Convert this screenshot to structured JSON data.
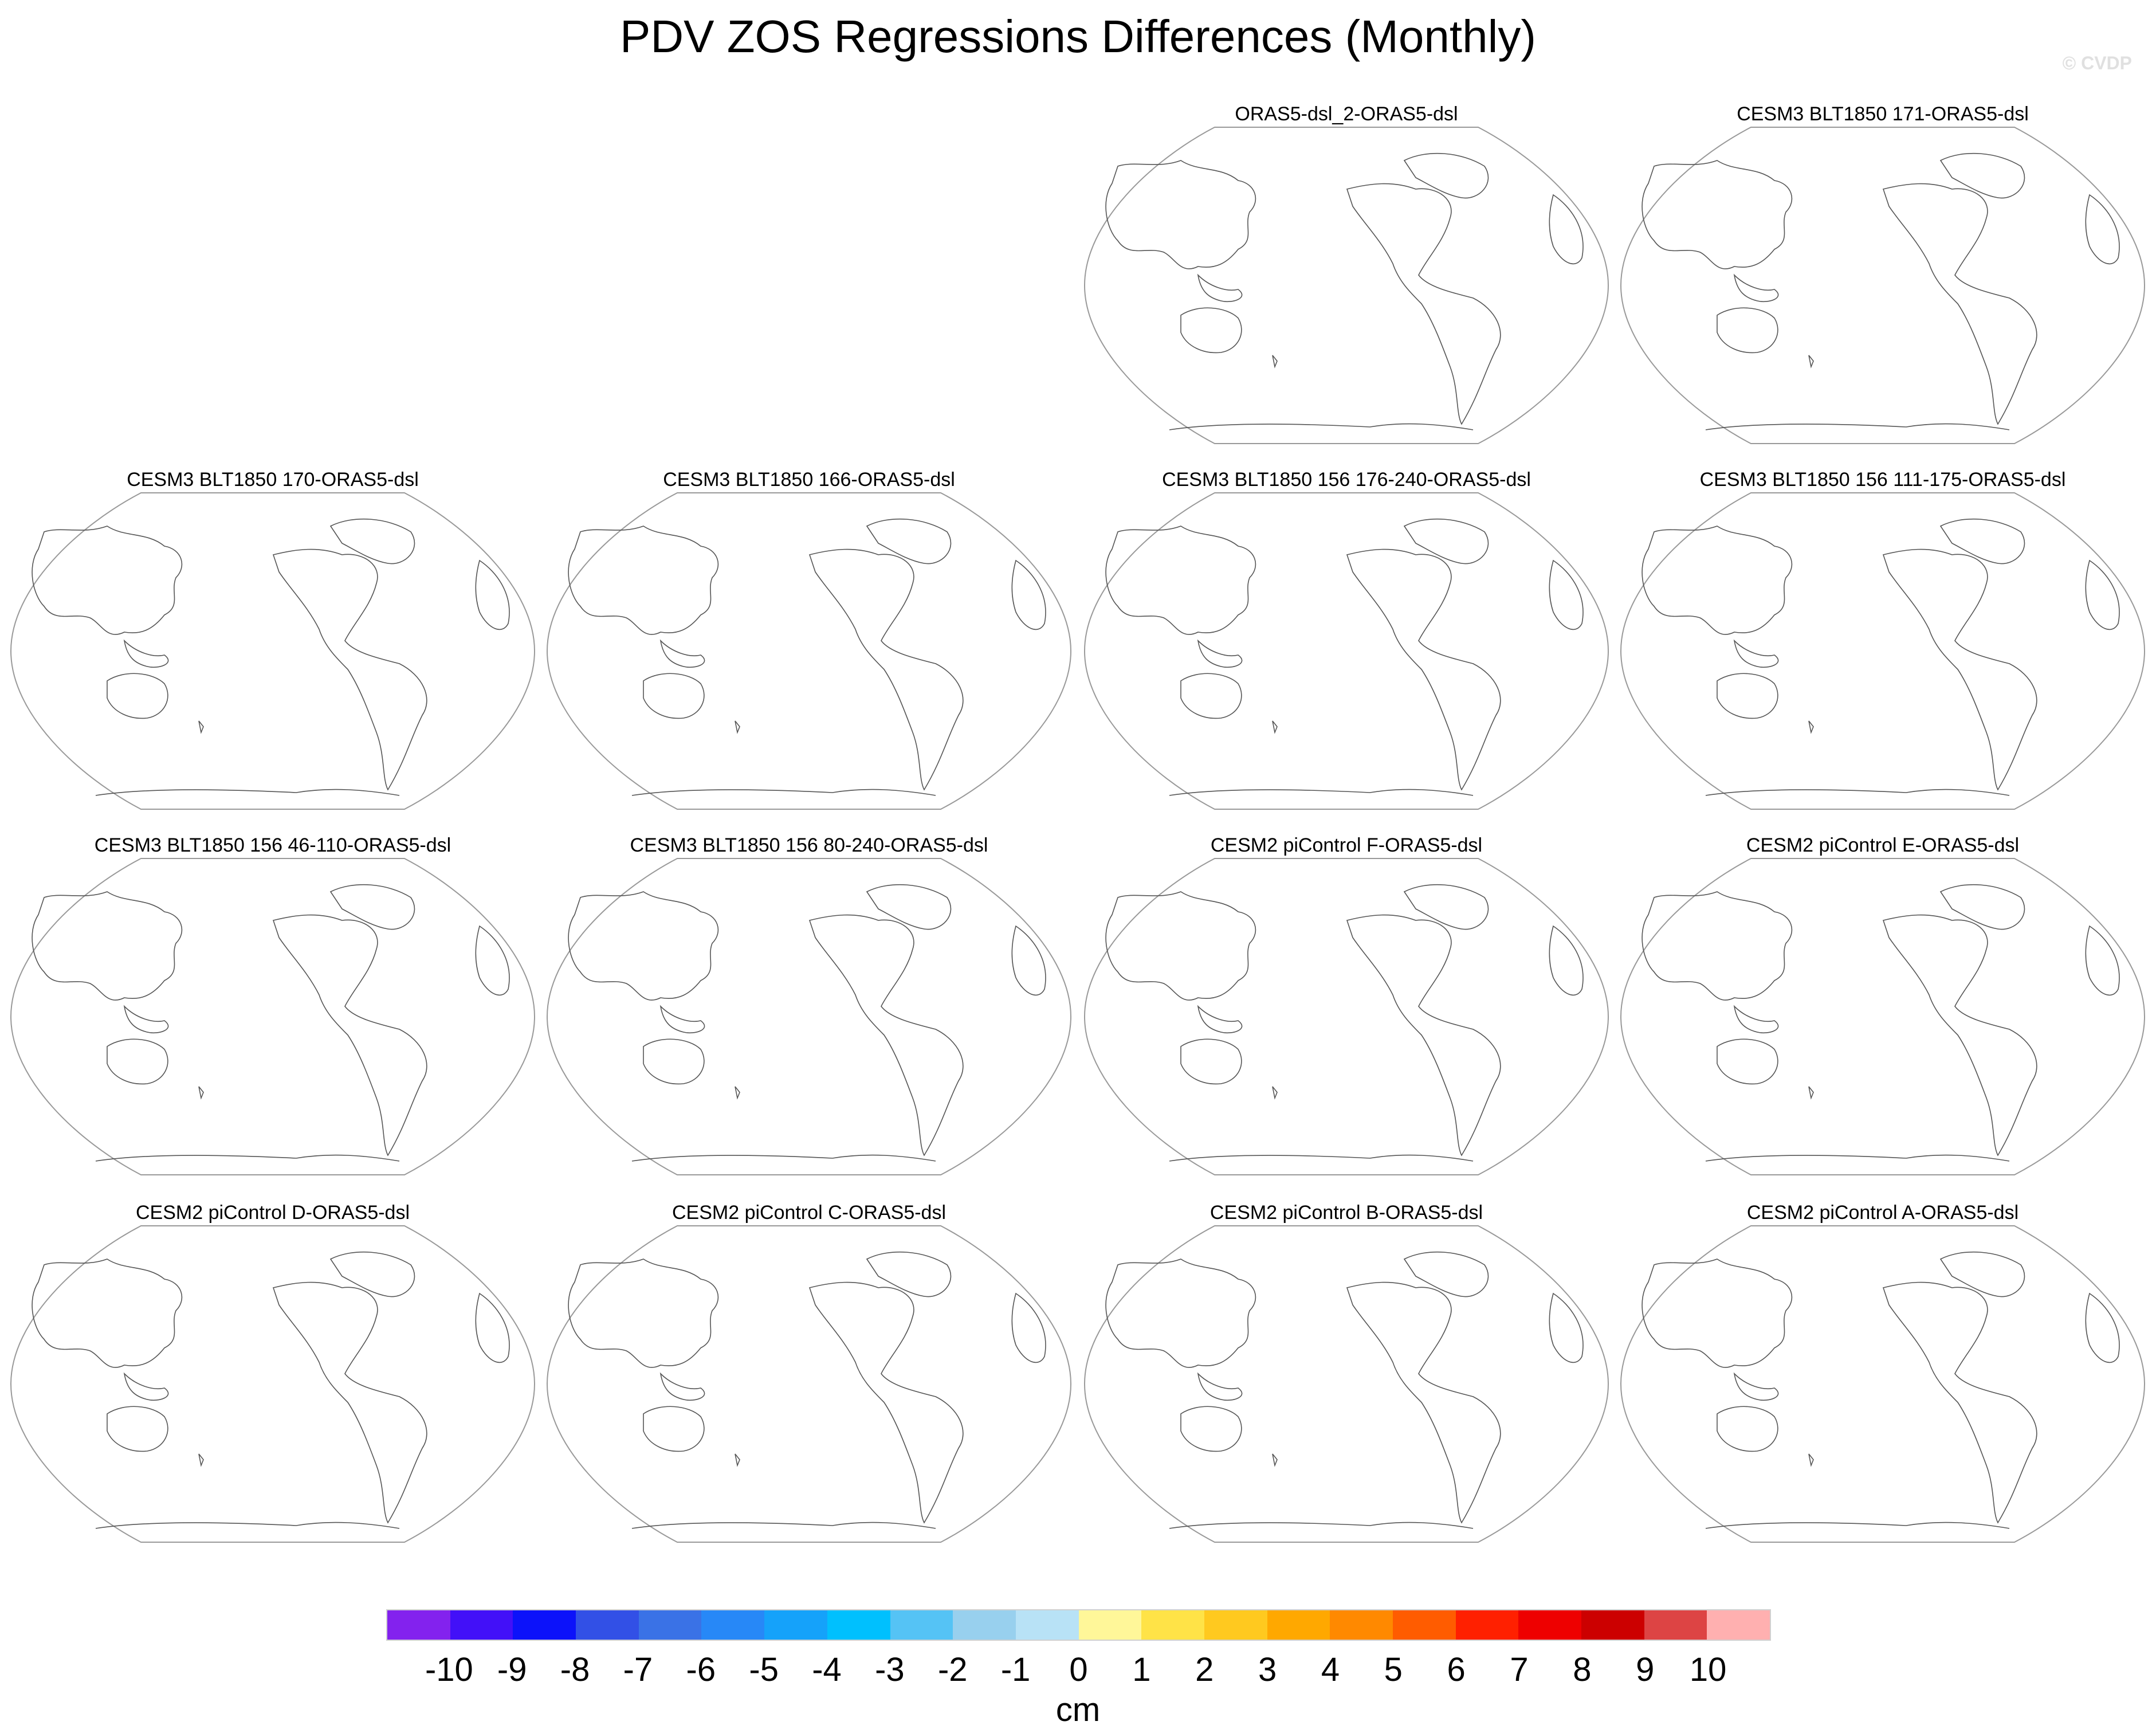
{
  "title": "PDV ZOS Regressions Differences (Monthly)",
  "watermark": "© CVDP",
  "chart_data": {
    "type": "map-panels",
    "title": "PDV ZOS Regressions Differences (Monthly)",
    "panels": [
      "ORAS5-dsl_2-ORAS5-dsl",
      "CESM3 BLT1850 171-ORAS5-dsl",
      "CESM3 BLT1850 170-ORAS5-dsl",
      "CESM3 BLT1850 166-ORAS5-dsl",
      "CESM3 BLT1850 156 176-240-ORAS5-dsl",
      "CESM3 BLT1850 156 111-175-ORAS5-dsl",
      "CESM3 BLT1850 156 46-110-ORAS5-dsl",
      "CESM3 BLT1850 156 80-240-ORAS5-dsl",
      "CESM2 piControl F-ORAS5-dsl",
      "CESM2 piControl E-ORAS5-dsl",
      "CESM2 piControl D-ORAS5-dsl",
      "CESM2 piControl C-ORAS5-dsl",
      "CESM2 piControl B-ORAS5-dsl",
      "CESM2 piControl A-ORAS5-dsl"
    ],
    "field_values": "all near zero (no shading visible)",
    "colorbar": {
      "label": "cm",
      "ticks": [
        "-10",
        "-9",
        "-8",
        "-7",
        "-6",
        "-5",
        "-4",
        "-3",
        "-2",
        "-1",
        "0",
        "1",
        "2",
        "3",
        "4",
        "5",
        "6",
        "7",
        "8",
        "9",
        "10"
      ],
      "colors": [
        "#8322ee",
        "#4210f8",
        "#0c12fa",
        "#3250e6",
        "#3a72e6",
        "#2788f7",
        "#15a2fa",
        "#00c0fe",
        "#55c3f5",
        "#98d0ee",
        "#b8e2f6",
        "#fff799",
        "#ffe347",
        "#ffc91f",
        "#ffa800",
        "#ff8900",
        "#ff5c00",
        "#ff2000",
        "#ee0000",
        "#cc0000",
        "#dd4444",
        "#ffb0b0"
      ]
    }
  }
}
